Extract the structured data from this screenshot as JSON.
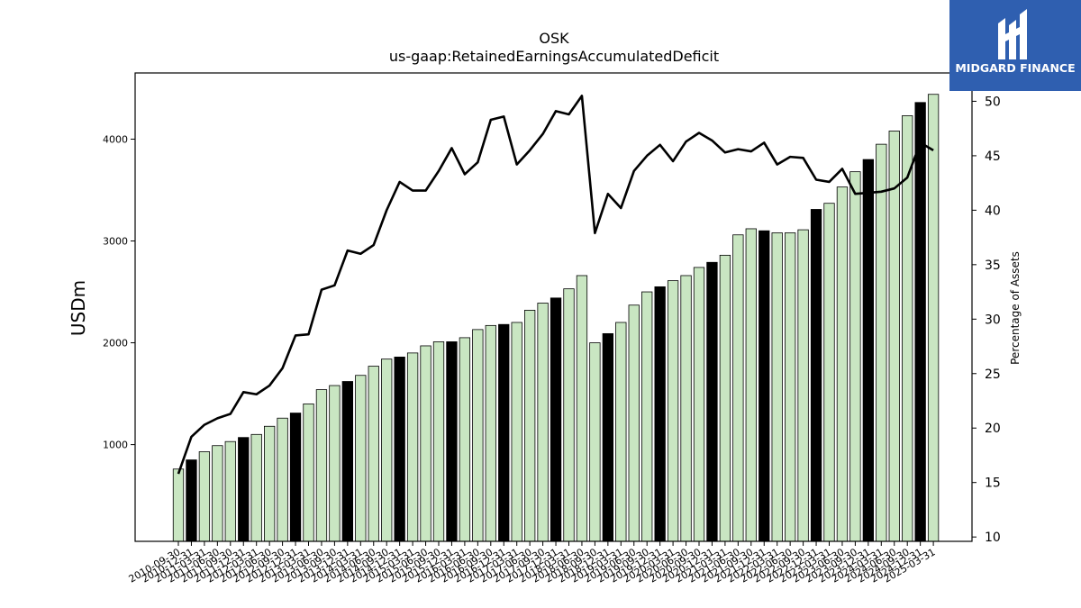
{
  "header": {
    "title": "OSK",
    "subtitle": "us-gaap:RetainedEarningsAccumulatedDeficit"
  },
  "logo": {
    "text": "MIDGARD FINANCE",
    "color": "#2f5fb0"
  },
  "colors": {
    "bar_light": "#c9e6c2",
    "bar_dark": "#000000",
    "line": "#000000"
  },
  "chart_data": {
    "type": "bar",
    "title": "OSK",
    "subtitle": "us-gaap:RetainedEarningsAccumulatedDeficit",
    "ylabel": "USDm",
    "ylabel_right": "Percentage of Assets",
    "ylim": [
      50,
      4650
    ],
    "ylim_right": [
      9.6,
      52.6
    ],
    "yticks": [
      1000,
      2000,
      3000,
      4000
    ],
    "yticks_right": [
      10,
      15,
      20,
      25,
      30,
      35,
      40,
      45,
      50
    ],
    "categories": [
      "2010-09-30",
      "2010-12-31",
      "2011-03-31",
      "2011-06-30",
      "2011-09-30",
      "2011-12-31",
      "2012-03-31",
      "2012-06-30",
      "2012-09-30",
      "2012-12-31",
      "2013-03-31",
      "2013-06-30",
      "2013-09-30",
      "2013-12-31",
      "2014-03-31",
      "2014-06-30",
      "2014-09-30",
      "2014-12-31",
      "2015-03-31",
      "2015-06-30",
      "2015-09-30",
      "2015-12-31",
      "2016-03-31",
      "2016-06-30",
      "2016-09-30",
      "2016-12-31",
      "2017-03-31",
      "2017-06-30",
      "2017-09-30",
      "2017-12-31",
      "2018-03-31",
      "2018-06-30",
      "2018-09-30",
      "2018-12-31",
      "2019-03-31",
      "2019-06-30",
      "2019-09-30",
      "2019-12-31",
      "2020-03-31",
      "2020-06-30",
      "2020-09-30",
      "2020-12-31",
      "2021-03-31",
      "2021-06-30",
      "2021-09-30",
      "2021-12-31",
      "2022-03-31",
      "2022-06-30",
      "2022-09-30",
      "2022-12-31",
      "2023-03-31",
      "2023-06-30",
      "2023-09-30",
      "2023-12-31",
      "2024-03-31",
      "2024-06-30",
      "2024-09-30",
      "2024-12-31",
      "2025-03-31"
    ],
    "series": [
      {
        "type": "bar",
        "values": [
          760,
          850,
          930,
          990,
          1030,
          1070,
          1100,
          1180,
          1260,
          1310,
          1400,
          1540,
          1580,
          1620,
          1680,
          1770,
          1840,
          1860,
          1900,
          1970,
          2010,
          2010,
          2050,
          2130,
          2170,
          2180,
          2200,
          2320,
          2390,
          2440,
          2530,
          2660,
          2000,
          2090,
          2200,
          2370,
          2500,
          2550,
          2610,
          2660,
          2740,
          2790,
          2860,
          3060,
          3120,
          3100,
          3080,
          3080,
          3110,
          3310,
          3370,
          3530,
          3680,
          3800,
          3950,
          4080,
          4230,
          4360,
          4440
        ],
        "highlight": [
          false,
          true,
          false,
          false,
          false,
          true,
          false,
          false,
          false,
          true,
          false,
          false,
          false,
          true,
          false,
          false,
          false,
          true,
          false,
          false,
          false,
          true,
          false,
          false,
          false,
          true,
          false,
          false,
          false,
          true,
          false,
          false,
          false,
          true,
          false,
          false,
          false,
          true,
          false,
          false,
          false,
          true,
          false,
          false,
          false,
          true,
          false,
          false,
          false,
          true,
          false,
          false,
          false,
          true,
          false,
          false,
          false,
          true,
          false
        ]
      },
      {
        "type": "line",
        "axis": "right",
        "values": [
          15.8,
          19.2,
          20.3,
          20.9,
          21.3,
          23.3,
          23.1,
          23.9,
          25.5,
          28.5,
          28.6,
          32.7,
          33.1,
          36.3,
          36.0,
          36.8,
          40.0,
          42.6,
          41.8,
          41.8,
          43.6,
          45.7,
          43.3,
          44.4,
          48.3,
          48.6,
          44.2,
          45.5,
          47.0,
          49.1,
          48.8,
          50.5,
          37.9,
          41.5,
          40.2,
          43.6,
          45.0,
          46.0,
          44.5,
          46.3,
          47.1,
          46.4,
          45.3,
          45.6,
          45.4,
          46.2,
          44.2,
          44.9,
          44.8,
          42.8,
          42.6,
          43.8,
          41.5,
          41.6,
          41.7,
          42.0,
          43.0,
          46.2,
          45.5
        ]
      }
    ]
  }
}
